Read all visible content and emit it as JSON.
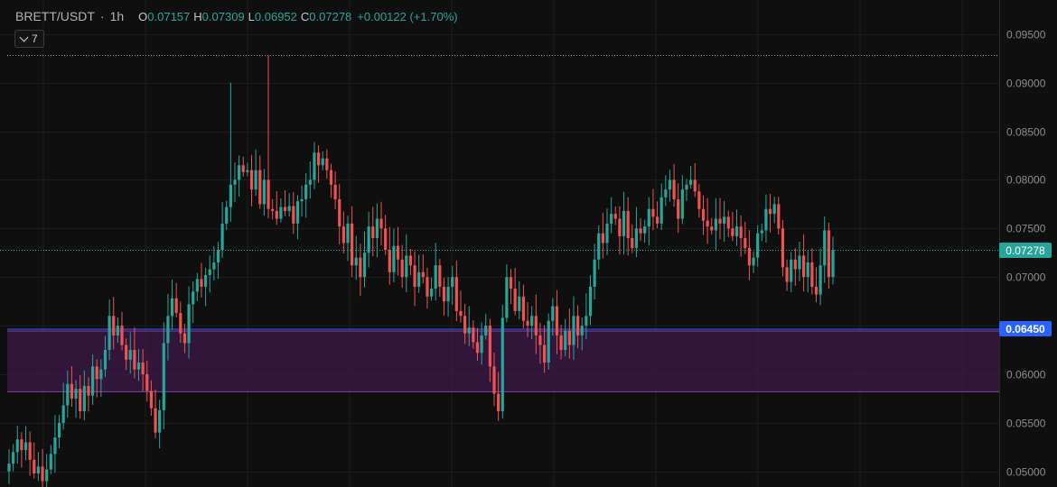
{
  "legend": {
    "symbol": "BRETT/USDT",
    "sep": "·",
    "timeframe": "1h",
    "o_key": "O",
    "o_val": "0.07157",
    "h_key": "H",
    "h_val": "0.07309",
    "l_key": "L",
    "l_val": "0.06952",
    "c_key": "C",
    "c_val": "0.07278",
    "change": "+0.00122 (+1.70%)"
  },
  "indicators_button": {
    "count": "7",
    "icon": "chevron-down-icon"
  },
  "price_tags": {
    "last": "0.07278",
    "zone_top": "0.06450"
  },
  "colors": {
    "up": "#26a69a",
    "down": "#ef5350",
    "zone_fill": "#3d1a4a",
    "zone_line": "#8a3fb0",
    "zone_top_line": "#3a5cff",
    "tag_blue": "#2962ff"
  },
  "chart_data": {
    "type": "candlestick",
    "symbol": "BRETT/USDT",
    "interval": "1h",
    "y_axis": {
      "ticks": [
        "0.09500",
        "0.09000",
        "0.08500",
        "0.08000",
        "0.07500",
        "0.07000",
        "0.06500",
        "0.06000",
        "0.05500",
        "0.05000"
      ],
      "range": [
        0.0484,
        0.0985
      ]
    },
    "grid": true,
    "last_price": 0.07278,
    "high_line": 0.0928,
    "zone": {
      "top": 0.0645,
      "bottom": 0.0582
    },
    "closes": [
      0.0508,
      0.052,
      0.0533,
      0.0522,
      0.053,
      0.0512,
      0.0498,
      0.0505,
      0.049,
      0.0502,
      0.0518,
      0.0535,
      0.055,
      0.0568,
      0.059,
      0.0575,
      0.0585,
      0.0562,
      0.0588,
      0.0578,
      0.0608,
      0.0595,
      0.0605,
      0.0625,
      0.066,
      0.064,
      0.065,
      0.063,
      0.0615,
      0.0625,
      0.0605,
      0.0612,
      0.06,
      0.0583,
      0.0565,
      0.054,
      0.0563,
      0.0632,
      0.066,
      0.0678,
      0.0663,
      0.0642,
      0.0632,
      0.0672,
      0.0685,
      0.0698,
      0.069,
      0.0702,
      0.0708,
      0.0715,
      0.0728,
      0.0755,
      0.0772,
      0.0795,
      0.08,
      0.0815,
      0.0808,
      0.081,
      0.079,
      0.081,
      0.0775,
      0.08,
      0.077,
      0.0768,
      0.076,
      0.0772,
      0.0768,
      0.0773,
      0.0755,
      0.0778,
      0.078,
      0.0795,
      0.08,
      0.0828,
      0.0815,
      0.0822,
      0.081,
      0.0795,
      0.078,
      0.0752,
      0.0735,
      0.0755,
      0.0712,
      0.072,
      0.07,
      0.0725,
      0.0752,
      0.074,
      0.076,
      0.075,
      0.0728,
      0.0705,
      0.0732,
      0.0718,
      0.07,
      0.0722,
      0.0712,
      0.069,
      0.0705,
      0.07,
      0.068,
      0.0688,
      0.0712,
      0.069,
      0.0675,
      0.069,
      0.07,
      0.0665,
      0.066,
      0.0642,
      0.0648,
      0.0633,
      0.0622,
      0.064,
      0.065,
      0.0608,
      0.058,
      0.0562,
      0.0658,
      0.07,
      0.0688,
      0.0665,
      0.068,
      0.0655,
      0.065,
      0.066,
      0.064,
      0.063,
      0.0612,
      0.0655,
      0.067,
      0.064,
      0.0625,
      0.0645,
      0.063,
      0.066,
      0.064,
      0.065,
      0.066,
      0.069,
      0.0718,
      0.0745,
      0.0735,
      0.0755,
      0.0765,
      0.076,
      0.0742,
      0.0768,
      0.074,
      0.073,
      0.075,
      0.0745,
      0.0752,
      0.077,
      0.0762,
      0.0755,
      0.0782,
      0.079,
      0.08,
      0.078,
      0.076,
      0.079,
      0.0795,
      0.08,
      0.0788,
      0.077,
      0.0758,
      0.0752,
      0.0748,
      0.076,
      0.0755,
      0.0762,
      0.075,
      0.0742,
      0.0752,
      0.074,
      0.073,
      0.0712,
      0.072,
      0.0745,
      0.0748,
      0.077,
      0.0765,
      0.0775,
      0.075,
      0.071,
      0.0695,
      0.0718,
      0.0708,
      0.0722,
      0.07,
      0.0715,
      0.069,
      0.0682,
      0.0712,
      0.0748,
      0.07,
      0.0728
    ]
  }
}
